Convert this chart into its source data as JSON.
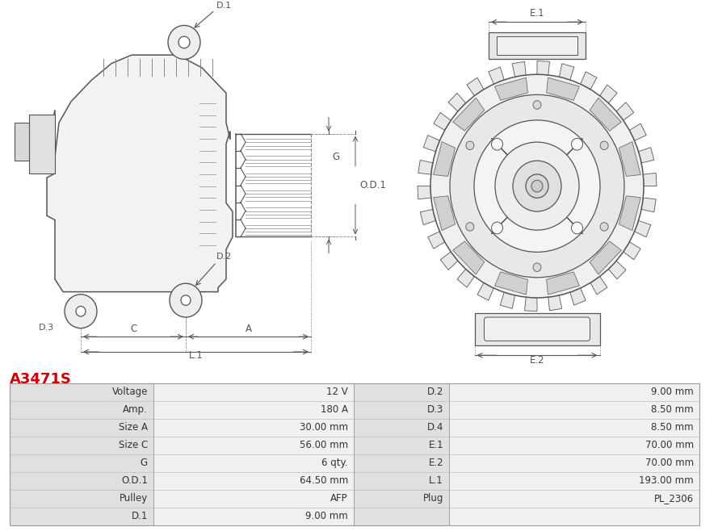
{
  "title": "A3471S",
  "title_color": "#cc0000",
  "table_data": [
    [
      "Voltage",
      "12 V",
      "D.2",
      "9.00 mm"
    ],
    [
      "Amp.",
      "180 A",
      "D.3",
      "8.50 mm"
    ],
    [
      "Size A",
      "30.00 mm",
      "D.4",
      "8.50 mm"
    ],
    [
      "Size C",
      "56.00 mm",
      "E.1",
      "70.00 mm"
    ],
    [
      "G",
      "6 qty.",
      "E.2",
      "70.00 mm"
    ],
    [
      "O.D.1",
      "64.50 mm",
      "L.1",
      "193.00 mm"
    ],
    [
      "Pulley",
      "AFP",
      "Plug",
      "PL_2306"
    ],
    [
      "D.1",
      "9.00 mm",
      "",
      ""
    ]
  ],
  "row_bg_label": "#e0e0e0",
  "row_bg_value": "#f0f0f0",
  "border_color": "#bbbbbb",
  "text_color": "#333333",
  "bg_color": "#ffffff",
  "lc": "#555555"
}
